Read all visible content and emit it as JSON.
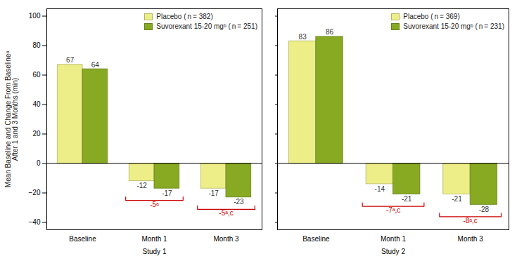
{
  "chart_data": [
    {
      "type": "bar",
      "categories": [
        "Baseline",
        "Month 1",
        "Month 3"
      ],
      "series": [
        {
          "name": "Placebo ( n = 382)",
          "color": "#EEEE88",
          "values": [
            67,
            -12,
            -17
          ]
        },
        {
          "name": "Suvorexant 15-20 mgᵇ ( n = 251)",
          "color": "#88AA22",
          "values": [
            64,
            -17,
            -23
          ]
        }
      ],
      "ylabel": "Mean Baseline and Change From Baselineᵃ\nAfter 1 and 3 Months (min)",
      "xlabel": "Study 1",
      "ylim": [
        -45,
        105
      ],
      "yticks": [
        -40,
        -20,
        0,
        20,
        40,
        60,
        80,
        100
      ],
      "grid": false,
      "legend": "upper right",
      "data_labels": true,
      "annotations": [
        {
          "x": "Month 1",
          "text": "-5ᵃ",
          "color": "#CC0000"
        },
        {
          "x": "Month 3",
          "text": "-5ᵃ,c",
          "color": "#CC0000"
        }
      ]
    },
    {
      "type": "bar",
      "categories": [
        "Baseline",
        "Month 1",
        "Month 3"
      ],
      "series": [
        {
          "name": "Placebo ( n = 369)",
          "color": "#EEEE88",
          "values": [
            83,
            -14,
            -21
          ]
        },
        {
          "name": "Suvorexant 15-20 mgᵇ ( n = 231)",
          "color": "#88AA22",
          "values": [
            86,
            -21,
            -28
          ]
        }
      ],
      "xlabel": "Study 2",
      "ylim": [
        -45,
        105
      ],
      "yticks": [
        -40,
        -20,
        0,
        20,
        40,
        60,
        80,
        100
      ],
      "grid": false,
      "legend": "upper right",
      "data_labels": true,
      "tick_labels": "x",
      "annotations": [
        {
          "x": "Month 1",
          "text": "-7ᵃ,c",
          "color": "#CC0000"
        },
        {
          "x": "Month 3",
          "text": "-8ᵃ,c",
          "color": "#CC0000"
        }
      ]
    }
  ]
}
